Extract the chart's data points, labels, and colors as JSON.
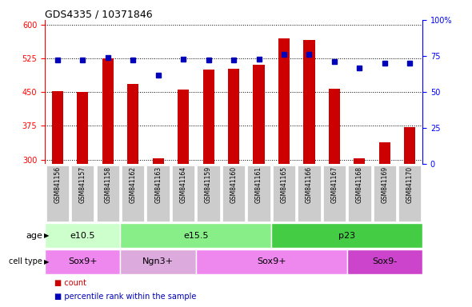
{
  "title": "GDS4335 / 10371846",
  "samples": [
    "GSM841156",
    "GSM841157",
    "GSM841158",
    "GSM841162",
    "GSM841163",
    "GSM841164",
    "GSM841159",
    "GSM841160",
    "GSM841161",
    "GSM841165",
    "GSM841166",
    "GSM841167",
    "GSM841168",
    "GSM841169",
    "GSM841170"
  ],
  "counts": [
    453,
    451,
    525,
    468,
    303,
    456,
    500,
    502,
    510,
    570,
    566,
    457,
    304,
    338,
    372
  ],
  "percentiles": [
    72,
    72,
    74,
    72,
    62,
    73,
    72,
    72,
    73,
    76,
    76,
    71,
    67,
    70,
    70
  ],
  "ylim_left": [
    290,
    610
  ],
  "ylim_right": [
    0,
    100
  ],
  "yticks_left": [
    300,
    375,
    450,
    525,
    600
  ],
  "yticks_right": [
    0,
    25,
    50,
    75,
    100
  ],
  "bar_color": "#cc0000",
  "dot_color": "#0000bb",
  "chart_bg": "#ffffff",
  "xticklabel_bg": "#cccccc",
  "age_groups": [
    {
      "label": "e10.5",
      "start": 0,
      "end": 3,
      "color": "#ccffcc"
    },
    {
      "label": "e15.5",
      "start": 3,
      "end": 9,
      "color": "#88ee88"
    },
    {
      "label": "p23",
      "start": 9,
      "end": 15,
      "color": "#44cc44"
    }
  ],
  "cell_groups": [
    {
      "label": "Sox9+",
      "start": 0,
      "end": 3,
      "color": "#ee88ee"
    },
    {
      "label": "Ngn3+",
      "start": 3,
      "end": 6,
      "color": "#ddaadd"
    },
    {
      "label": "Sox9+",
      "start": 6,
      "end": 12,
      "color": "#ee88ee"
    },
    {
      "label": "Sox9-",
      "start": 12,
      "end": 15,
      "color": "#cc44cc"
    }
  ],
  "legend_count_color": "#cc0000",
  "legend_dot_color": "#0000bb",
  "title_fontsize": 9,
  "tick_fontsize": 7,
  "label_fontsize": 8,
  "group_fontsize": 8
}
